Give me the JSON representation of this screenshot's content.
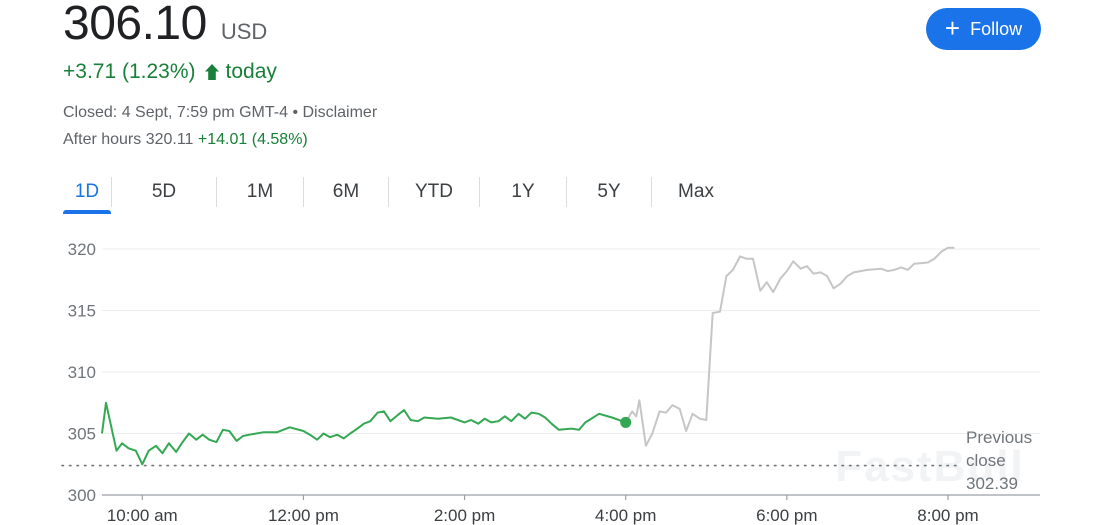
{
  "quote": {
    "price": "306.10",
    "currency": "USD",
    "change": "+3.71 (1.23%)",
    "change_suffix": "today",
    "closed_text": "Closed: 4 Sept, 7:59 pm GMT-4 • Disclaimer",
    "after_hours_label": "After hours 320.11",
    "after_hours_change": "+14.01 (4.58%)",
    "up_color": "#188038"
  },
  "follow_button": {
    "label": "Follow",
    "icon": "plus-icon",
    "color": "#1a73e8"
  },
  "range_tabs": {
    "items": [
      "1D",
      "5D",
      "1M",
      "6M",
      "YTD",
      "1Y",
      "5Y",
      "Max"
    ],
    "active": "1D"
  },
  "watermark": "FastBull",
  "chart_data": {
    "type": "line",
    "ylim": [
      300,
      320
    ],
    "y_ticks": [
      300,
      305,
      310,
      315,
      320
    ],
    "x_tick_labels": [
      "10:00 am",
      "12:00 pm",
      "2:00 pm",
      "4:00 pm",
      "6:00 pm",
      "8:00 pm"
    ],
    "x_tick_hours": [
      10,
      12,
      14,
      16,
      18,
      20
    ],
    "x_range_hours": [
      9.5,
      20.0
    ],
    "reference": {
      "label_lines": [
        "Previous",
        "close",
        "302.39"
      ],
      "value": 302.39
    },
    "series": [
      {
        "session": "regular",
        "color": "#34a853",
        "end_marker_value": 305.9,
        "points": [
          [
            9.5,
            305.0
          ],
          [
            9.55,
            307.5
          ],
          [
            9.68,
            303.6
          ],
          [
            9.75,
            304.2
          ],
          [
            9.83,
            303.8
          ],
          [
            9.92,
            303.6
          ],
          [
            10.0,
            302.5
          ],
          [
            10.08,
            303.6
          ],
          [
            10.17,
            304.0
          ],
          [
            10.25,
            303.4
          ],
          [
            10.33,
            304.2
          ],
          [
            10.42,
            303.5
          ],
          [
            10.5,
            304.3
          ],
          [
            10.58,
            305.0
          ],
          [
            10.67,
            304.5
          ],
          [
            10.75,
            304.9
          ],
          [
            10.83,
            304.5
          ],
          [
            10.92,
            304.3
          ],
          [
            11.0,
            305.3
          ],
          [
            11.08,
            305.2
          ],
          [
            11.17,
            304.4
          ],
          [
            11.25,
            304.8
          ],
          [
            11.33,
            304.9
          ],
          [
            11.5,
            305.1
          ],
          [
            11.67,
            305.1
          ],
          [
            11.83,
            305.5
          ],
          [
            12.0,
            305.2
          ],
          [
            12.08,
            304.9
          ],
          [
            12.17,
            304.5
          ],
          [
            12.25,
            305.0
          ],
          [
            12.33,
            304.7
          ],
          [
            12.42,
            304.9
          ],
          [
            12.5,
            304.6
          ],
          [
            12.58,
            305.0
          ],
          [
            12.67,
            305.4
          ],
          [
            12.75,
            305.8
          ],
          [
            12.83,
            306.0
          ],
          [
            12.92,
            306.7
          ],
          [
            13.0,
            306.8
          ],
          [
            13.08,
            306.0
          ],
          [
            13.17,
            306.5
          ],
          [
            13.25,
            306.9
          ],
          [
            13.33,
            306.1
          ],
          [
            13.42,
            306.0
          ],
          [
            13.5,
            306.3
          ],
          [
            13.67,
            306.2
          ],
          [
            13.83,
            306.3
          ],
          [
            14.0,
            305.9
          ],
          [
            14.08,
            306.1
          ],
          [
            14.17,
            305.8
          ],
          [
            14.25,
            306.2
          ],
          [
            14.33,
            305.9
          ],
          [
            14.42,
            306.0
          ],
          [
            14.5,
            306.4
          ],
          [
            14.58,
            306.0
          ],
          [
            14.67,
            306.6
          ],
          [
            14.75,
            306.2
          ],
          [
            14.83,
            306.7
          ],
          [
            14.92,
            306.6
          ],
          [
            15.0,
            306.3
          ],
          [
            15.08,
            305.8
          ],
          [
            15.17,
            305.3
          ],
          [
            15.33,
            305.4
          ],
          [
            15.42,
            305.3
          ],
          [
            15.5,
            305.9
          ],
          [
            15.67,
            306.6
          ],
          [
            15.83,
            306.3
          ],
          [
            16.0,
            305.9
          ]
        ]
      },
      {
        "session": "after-hours",
        "color": "#c6c6c6",
        "points": [
          [
            16.0,
            305.9
          ],
          [
            16.08,
            306.8
          ],
          [
            16.13,
            306.4
          ],
          [
            16.17,
            307.7
          ],
          [
            16.25,
            304.0
          ],
          [
            16.33,
            305.0
          ],
          [
            16.42,
            306.8
          ],
          [
            16.5,
            306.7
          ],
          [
            16.58,
            307.3
          ],
          [
            16.67,
            307.0
          ],
          [
            16.75,
            305.2
          ],
          [
            16.83,
            306.6
          ],
          [
            16.92,
            306.2
          ],
          [
            17.0,
            306.1
          ],
          [
            17.08,
            314.8
          ],
          [
            17.17,
            314.9
          ],
          [
            17.25,
            317.8
          ],
          [
            17.33,
            318.3
          ],
          [
            17.42,
            319.4
          ],
          [
            17.5,
            319.2
          ],
          [
            17.58,
            319.2
          ],
          [
            17.67,
            316.6
          ],
          [
            17.75,
            317.3
          ],
          [
            17.83,
            316.5
          ],
          [
            17.92,
            317.6
          ],
          [
            18.0,
            318.2
          ],
          [
            18.08,
            319.0
          ],
          [
            18.17,
            318.4
          ],
          [
            18.25,
            318.6
          ],
          [
            18.33,
            318.0
          ],
          [
            18.42,
            318.1
          ],
          [
            18.5,
            317.8
          ],
          [
            18.58,
            316.8
          ],
          [
            18.67,
            317.2
          ],
          [
            18.75,
            317.8
          ],
          [
            18.83,
            318.1
          ],
          [
            19.0,
            318.3
          ],
          [
            19.17,
            318.4
          ],
          [
            19.25,
            318.2
          ],
          [
            19.33,
            318.3
          ],
          [
            19.42,
            318.5
          ],
          [
            19.5,
            318.3
          ],
          [
            19.58,
            318.8
          ],
          [
            19.75,
            318.9
          ],
          [
            19.83,
            319.2
          ],
          [
            19.92,
            319.8
          ],
          [
            20.0,
            320.1
          ],
          [
            20.08,
            320.1
          ]
        ]
      }
    ]
  }
}
